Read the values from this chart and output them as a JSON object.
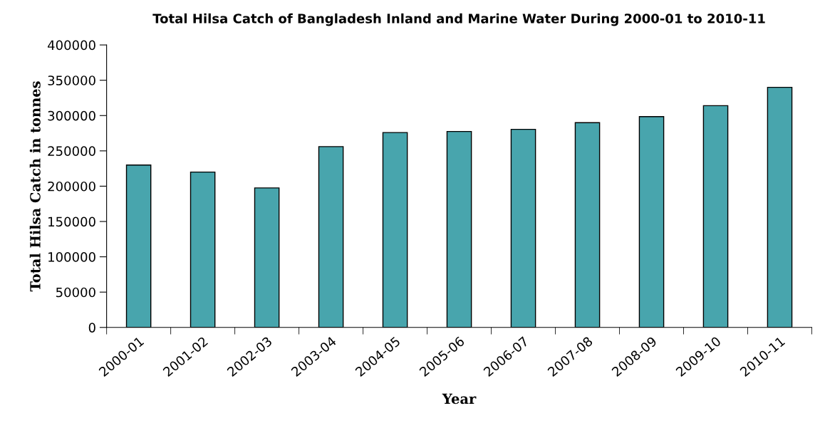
{
  "chart_data": {
    "type": "bar",
    "title": "Total Hilsa Catch of Bangladesh Inland and Marine Water During 2000-01 to 2010-11",
    "xlabel": "Year",
    "ylabel": "Total Hilsa Catch in tonnes",
    "categories": [
      "2000-01",
      "2001-02",
      "2002-03",
      "2003-04",
      "2004-05",
      "2005-06",
      "2006-07",
      "2007-08",
      "2008-09",
      "2009-10",
      "2010-11"
    ],
    "values": [
      230000,
      220000,
      197500,
      256000,
      276000,
      277500,
      280500,
      290000,
      298500,
      314000,
      340000
    ],
    "color": "#48a5ad",
    "ylim": [
      0,
      400000
    ],
    "yticks": [
      0,
      50000,
      100000,
      150000,
      200000,
      250000,
      300000,
      350000,
      400000
    ],
    "grid": false
  }
}
